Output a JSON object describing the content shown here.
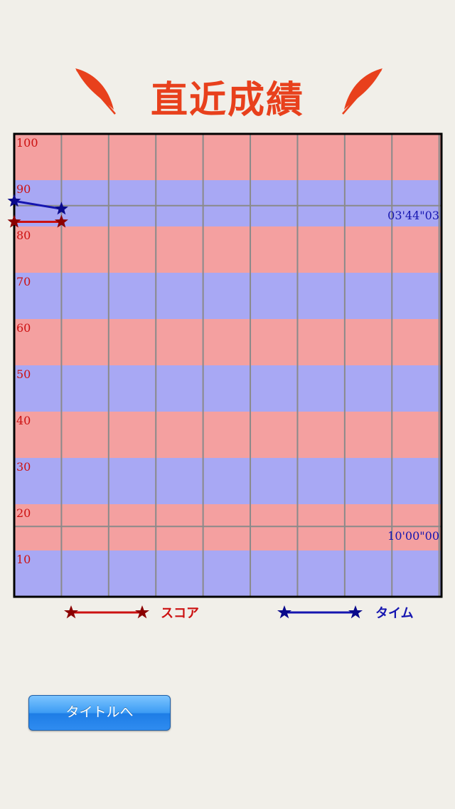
{
  "header": {
    "title": "直近成績"
  },
  "chart_data": {
    "type": "line",
    "y_left": {
      "min": 0,
      "max": 100,
      "ticks": [
        10,
        20,
        30,
        40,
        50,
        60,
        70,
        80,
        90,
        100
      ],
      "tick_color": "#cc1111"
    },
    "y_right_time": {
      "labels": [
        "03'44\"03",
        "10'00\"00"
      ],
      "tick_color": "#1515b0"
    },
    "x": {
      "count": 10,
      "values": [
        0,
        1
      ]
    },
    "series": [
      {
        "name": "スコア",
        "color": "#cc1111",
        "x": [
          0,
          1
        ],
        "y": [
          81,
          81
        ]
      },
      {
        "name": "タイム",
        "color": "#1515b0",
        "x": [
          0,
          1
        ],
        "y": [
          85.5,
          83.8
        ]
      }
    ],
    "grid": true,
    "background_stripes": [
      "#f4a0a0",
      "#a8a8f4"
    ]
  },
  "legend": {
    "score_label": "スコア",
    "time_label": "タイム"
  },
  "buttons": {
    "back_label": "タイトルへ"
  }
}
